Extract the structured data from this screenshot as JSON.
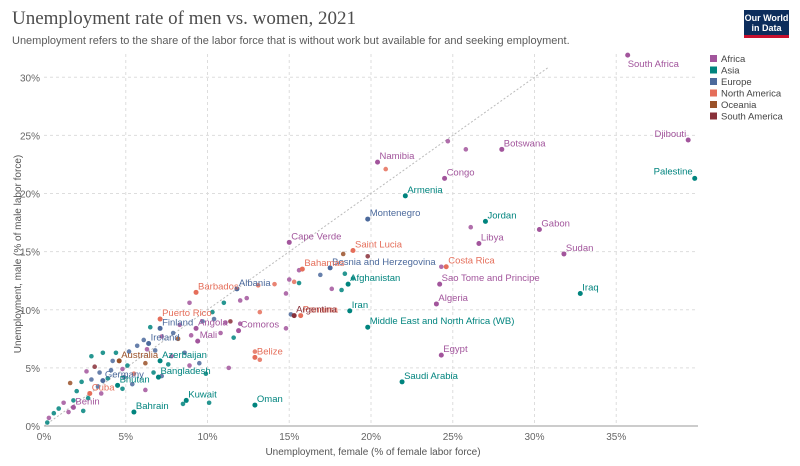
{
  "header": {
    "title": "Unemployment rate of men vs. women, 2021",
    "subtitle": "Unemployment refers to the share of the labor force that is without work but available for and seeking employment.",
    "logo_line1": "Our World",
    "logo_line2": "in Data"
  },
  "chart_data": {
    "type": "scatter",
    "xlabel": "Unemployment, female (% of female labor force)",
    "ylabel": "Unemployment, male (% of male labor force)",
    "xlim": [
      0,
      40
    ],
    "ylim": [
      0,
      32
    ],
    "xticks": [
      "0%",
      "5%",
      "10%",
      "15%",
      "20%",
      "25%",
      "30%",
      "35%"
    ],
    "yticks": [
      "0%",
      "5%",
      "10%",
      "15%",
      "20%",
      "25%",
      "30%"
    ],
    "grid": true,
    "diagonal_reference_line": true,
    "legend_position": "right",
    "regions": [
      {
        "name": "Africa",
        "color": "#a2559c"
      },
      {
        "name": "Asia",
        "color": "#00847e"
      },
      {
        "name": "Europe",
        "color": "#4c6a9c"
      },
      {
        "name": "North America",
        "color": "#e56e5a"
      },
      {
        "name": "Oceania",
        "color": "#9a5129"
      },
      {
        "name": "South America",
        "color": "#883039"
      }
    ],
    "labeled_points": [
      {
        "label": "South Africa",
        "x": 35.7,
        "y": 31.9,
        "region": "Africa"
      },
      {
        "label": "Djibouti",
        "x": 39.4,
        "y": 24.6,
        "region": "Africa"
      },
      {
        "label": "Palestine",
        "x": 39.8,
        "y": 21.3,
        "region": "Asia"
      },
      {
        "label": "Botswana",
        "x": 28.0,
        "y": 23.8,
        "region": "Africa"
      },
      {
        "label": "Namibia",
        "x": 20.4,
        "y": 22.7,
        "region": "Africa"
      },
      {
        "label": "Congo",
        "x": 24.5,
        "y": 21.3,
        "region": "Africa"
      },
      {
        "label": "Armenia",
        "x": 22.1,
        "y": 19.8,
        "region": "Asia"
      },
      {
        "label": "Montenegro",
        "x": 19.8,
        "y": 17.8,
        "region": "Europe"
      },
      {
        "label": "Jordan",
        "x": 27.0,
        "y": 17.6,
        "region": "Asia"
      },
      {
        "label": "Gabon",
        "x": 30.3,
        "y": 16.9,
        "region": "Africa"
      },
      {
        "label": "Libya",
        "x": 26.6,
        "y": 15.7,
        "region": "Africa"
      },
      {
        "label": "Sudan",
        "x": 31.8,
        "y": 14.8,
        "region": "Africa"
      },
      {
        "label": "Cape Verde",
        "x": 15.0,
        "y": 15.8,
        "region": "Africa"
      },
      {
        "label": "Saint Lucia",
        "x": 18.9,
        "y": 15.1,
        "region": "North America"
      },
      {
        "label": "Bosnia and Herzegovina",
        "x": 17.5,
        "y": 13.6,
        "region": "Europe"
      },
      {
        "label": "Costa Rica",
        "x": 24.6,
        "y": 13.7,
        "region": "North America"
      },
      {
        "label": "Bahamas",
        "x": 15.8,
        "y": 13.5,
        "region": "North America"
      },
      {
        "label": "Sao Tome and Principe",
        "x": 24.2,
        "y": 12.2,
        "region": "Africa"
      },
      {
        "label": "Afghanistan",
        "x": 18.6,
        "y": 12.2,
        "region": "Asia"
      },
      {
        "label": "Albania",
        "x": 11.8,
        "y": 11.8,
        "region": "Europe"
      },
      {
        "label": "Barbados",
        "x": 9.3,
        "y": 11.5,
        "region": "North America"
      },
      {
        "label": "Iraq",
        "x": 32.8,
        "y": 11.4,
        "region": "Asia"
      },
      {
        "label": "Algeria",
        "x": 24.0,
        "y": 10.5,
        "region": "Africa"
      },
      {
        "label": "Iran",
        "x": 18.7,
        "y": 9.9,
        "region": "Asia"
      },
      {
        "label": "Panama",
        "x": 15.7,
        "y": 9.5,
        "region": "North America"
      },
      {
        "label": "Argentina",
        "x": 15.3,
        "y": 9.5,
        "region": "South America"
      },
      {
        "label": "Puerto Rico",
        "x": 7.1,
        "y": 9.2,
        "region": "North America"
      },
      {
        "label": "Middle East and North Africa (WB)",
        "x": 19.8,
        "y": 8.5,
        "region": "Asia"
      },
      {
        "label": "Finland",
        "x": 7.1,
        "y": 8.4,
        "region": "Europe"
      },
      {
        "label": "Angola",
        "x": 9.3,
        "y": 8.4,
        "region": "Africa"
      },
      {
        "label": "Comoros",
        "x": 11.9,
        "y": 8.2,
        "region": "Africa"
      },
      {
        "label": "Mali",
        "x": 9.4,
        "y": 7.3,
        "region": "Africa"
      },
      {
        "label": "Ireland",
        "x": 6.4,
        "y": 7.1,
        "region": "Europe"
      },
      {
        "label": "Belize",
        "x": 12.9,
        "y": 5.9,
        "region": "North America"
      },
      {
        "label": "Egypt",
        "x": 24.3,
        "y": 6.1,
        "region": "Africa"
      },
      {
        "label": "Australia",
        "x": 4.6,
        "y": 5.6,
        "region": "Oceania"
      },
      {
        "label": "Azerbaijan",
        "x": 7.1,
        "y": 5.6,
        "region": "Asia"
      },
      {
        "label": "Bangladesh",
        "x": 7.0,
        "y": 4.2,
        "region": "Asia"
      },
      {
        "label": "Germany",
        "x": 3.6,
        "y": 3.9,
        "region": "Europe"
      },
      {
        "label": "Saudi Arabia",
        "x": 21.9,
        "y": 3.8,
        "region": "Asia"
      },
      {
        "label": "Bhutan",
        "x": 4.5,
        "y": 3.5,
        "region": "Asia"
      },
      {
        "label": "Cuba",
        "x": 2.8,
        "y": 2.8,
        "region": "North America"
      },
      {
        "label": "Kuwait",
        "x": 8.7,
        "y": 2.2,
        "region": "Asia"
      },
      {
        "label": "Oman",
        "x": 12.9,
        "y": 1.8,
        "region": "Asia"
      },
      {
        "label": "Benin",
        "x": 1.8,
        "y": 1.6,
        "region": "Africa"
      },
      {
        "label": "Bahrain",
        "x": 5.5,
        "y": 1.2,
        "region": "Asia"
      }
    ],
    "unlabeled_points": [
      {
        "x": 24.7,
        "y": 24.5,
        "region": "Africa"
      },
      {
        "x": 25.8,
        "y": 23.8,
        "region": "Africa"
      },
      {
        "x": 20.9,
        "y": 22.1,
        "region": "North America"
      },
      {
        "x": 26.1,
        "y": 17.1,
        "region": "Africa"
      },
      {
        "x": 18.3,
        "y": 14.8,
        "region": "Oceania"
      },
      {
        "x": 19.8,
        "y": 14.6,
        "region": "South America"
      },
      {
        "x": 15.6,
        "y": 13.4,
        "region": "Africa"
      },
      {
        "x": 24.3,
        "y": 13.7,
        "region": "Africa"
      },
      {
        "x": 16.9,
        "y": 13.0,
        "region": "Europe"
      },
      {
        "x": 18.4,
        "y": 13.1,
        "region": "Asia"
      },
      {
        "x": 15.0,
        "y": 12.6,
        "region": "Africa"
      },
      {
        "x": 15.3,
        "y": 12.4,
        "region": "North America"
      },
      {
        "x": 14.1,
        "y": 12.2,
        "region": "North America"
      },
      {
        "x": 13.1,
        "y": 12.1,
        "region": "North America"
      },
      {
        "x": 15.6,
        "y": 12.3,
        "region": "Asia"
      },
      {
        "x": 18.2,
        "y": 11.7,
        "region": "Asia"
      },
      {
        "x": 17.6,
        "y": 11.8,
        "region": "Africa"
      },
      {
        "x": 18.9,
        "y": 12.7,
        "region": "Asia"
      },
      {
        "x": 12.4,
        "y": 11.0,
        "region": "Africa"
      },
      {
        "x": 12.0,
        "y": 10.8,
        "region": "Africa"
      },
      {
        "x": 8.9,
        "y": 10.6,
        "region": "Africa"
      },
      {
        "x": 14.8,
        "y": 11.4,
        "region": "Africa"
      },
      {
        "x": 11.0,
        "y": 10.6,
        "region": "Asia"
      },
      {
        "x": 10.3,
        "y": 9.8,
        "region": "Asia"
      },
      {
        "x": 13.2,
        "y": 9.8,
        "region": "North America"
      },
      {
        "x": 15.1,
        "y": 9.6,
        "region": "Europe"
      },
      {
        "x": 11.4,
        "y": 9.0,
        "region": "South America"
      },
      {
        "x": 11.1,
        "y": 8.9,
        "region": "Africa"
      },
      {
        "x": 10.4,
        "y": 9.2,
        "region": "Europe"
      },
      {
        "x": 9.7,
        "y": 9.0,
        "region": "Europe"
      },
      {
        "x": 8.3,
        "y": 8.7,
        "region": "Africa"
      },
      {
        "x": 6.5,
        "y": 8.5,
        "region": "Asia"
      },
      {
        "x": 7.9,
        "y": 8.0,
        "region": "Europe"
      },
      {
        "x": 10.8,
        "y": 8.0,
        "region": "Africa"
      },
      {
        "x": 14.8,
        "y": 8.4,
        "region": "Africa"
      },
      {
        "x": 12.0,
        "y": 8.8,
        "region": "Africa"
      },
      {
        "x": 11.6,
        "y": 7.6,
        "region": "Asia"
      },
      {
        "x": 9.0,
        "y": 7.8,
        "region": "Africa"
      },
      {
        "x": 8.2,
        "y": 7.5,
        "region": "Oceania"
      },
      {
        "x": 7.2,
        "y": 7.7,
        "region": "Africa"
      },
      {
        "x": 6.1,
        "y": 7.4,
        "region": "Europe"
      },
      {
        "x": 5.7,
        "y": 6.9,
        "region": "Europe"
      },
      {
        "x": 6.3,
        "y": 6.6,
        "region": "Africa"
      },
      {
        "x": 5.2,
        "y": 6.4,
        "region": "Europe"
      },
      {
        "x": 6.8,
        "y": 6.5,
        "region": "Europe"
      },
      {
        "x": 4.4,
        "y": 6.3,
        "region": "Asia"
      },
      {
        "x": 3.6,
        "y": 6.3,
        "region": "Asia"
      },
      {
        "x": 2.9,
        "y": 6.0,
        "region": "Asia"
      },
      {
        "x": 8.6,
        "y": 6.3,
        "region": "Europe"
      },
      {
        "x": 7.8,
        "y": 6.0,
        "region": "Africa"
      },
      {
        "x": 12.9,
        "y": 6.4,
        "region": "North America"
      },
      {
        "x": 13.2,
        "y": 5.7,
        "region": "North America"
      },
      {
        "x": 11.3,
        "y": 5.0,
        "region": "Africa"
      },
      {
        "x": 9.5,
        "y": 5.4,
        "region": "Europe"
      },
      {
        "x": 8.9,
        "y": 5.2,
        "region": "Africa"
      },
      {
        "x": 7.6,
        "y": 5.3,
        "region": "Asia"
      },
      {
        "x": 6.2,
        "y": 5.4,
        "region": "Oceania"
      },
      {
        "x": 5.1,
        "y": 5.2,
        "region": "Asia"
      },
      {
        "x": 4.8,
        "y": 4.9,
        "region": "Africa"
      },
      {
        "x": 4.1,
        "y": 4.8,
        "region": "Europe"
      },
      {
        "x": 3.4,
        "y": 4.6,
        "region": "Europe"
      },
      {
        "x": 2.6,
        "y": 4.7,
        "region": "Africa"
      },
      {
        "x": 5.5,
        "y": 4.5,
        "region": "North America"
      },
      {
        "x": 6.7,
        "y": 4.6,
        "region": "Asia"
      },
      {
        "x": 4.9,
        "y": 4.2,
        "region": "Europe"
      },
      {
        "x": 3.9,
        "y": 4.1,
        "region": "Asia"
      },
      {
        "x": 2.9,
        "y": 4.0,
        "region": "Europe"
      },
      {
        "x": 2.3,
        "y": 3.8,
        "region": "Asia"
      },
      {
        "x": 1.6,
        "y": 3.7,
        "region": "Oceania"
      },
      {
        "x": 3.3,
        "y": 3.4,
        "region": "Europe"
      },
      {
        "x": 4.8,
        "y": 3.2,
        "region": "Asia"
      },
      {
        "x": 6.2,
        "y": 3.1,
        "region": "Africa"
      },
      {
        "x": 5.4,
        "y": 3.6,
        "region": "Europe"
      },
      {
        "x": 2.0,
        "y": 3.0,
        "region": "Asia"
      },
      {
        "x": 3.5,
        "y": 2.8,
        "region": "Africa"
      },
      {
        "x": 2.7,
        "y": 2.4,
        "region": "Asia"
      },
      {
        "x": 1.8,
        "y": 2.2,
        "region": "Asia"
      },
      {
        "x": 1.2,
        "y": 2.0,
        "region": "Africa"
      },
      {
        "x": 0.9,
        "y": 1.5,
        "region": "Asia"
      },
      {
        "x": 0.6,
        "y": 1.1,
        "region": "Asia"
      },
      {
        "x": 0.3,
        "y": 0.7,
        "region": "Africa"
      },
      {
        "x": 0.2,
        "y": 0.3,
        "region": "Asia"
      },
      {
        "x": 8.5,
        "y": 1.9,
        "region": "Asia"
      },
      {
        "x": 10.1,
        "y": 2.0,
        "region": "Asia"
      },
      {
        "x": 2.4,
        "y": 1.3,
        "region": "Asia"
      },
      {
        "x": 1.5,
        "y": 1.2,
        "region": "Africa"
      },
      {
        "x": 7.2,
        "y": 4.3,
        "region": "Europe"
      },
      {
        "x": 4.2,
        "y": 5.6,
        "region": "Europe"
      },
      {
        "x": 3.1,
        "y": 5.1,
        "region": "South America"
      },
      {
        "x": 9.9,
        "y": 4.5,
        "region": "Asia"
      }
    ]
  }
}
